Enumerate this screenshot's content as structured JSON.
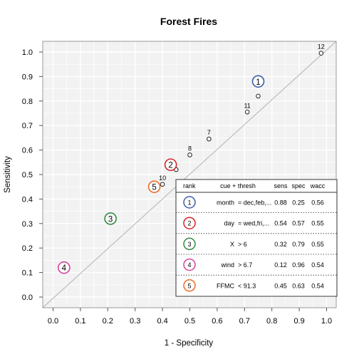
{
  "chart_data": {
    "type": "scatter",
    "title": "Forest Fires",
    "xlabel": "1 - Specificity",
    "ylabel": "Sensitivity",
    "xlim": [
      0,
      1
    ],
    "ylim": [
      0,
      1
    ],
    "grid": true,
    "x_ticks": [
      "0.0",
      "0.1",
      "0.2",
      "0.3",
      "0.4",
      "0.5",
      "0.6",
      "0.7",
      "0.8",
      "0.9",
      "1.0"
    ],
    "y_ticks": [
      "0.0",
      "0.1",
      "0.2",
      "0.3",
      "0.4",
      "0.5",
      "0.6",
      "0.7",
      "0.8",
      "0.9",
      "1.0"
    ],
    "diagonal": true,
    "points": [
      {
        "label": "",
        "x": 0.75,
        "y": 0.82
      },
      {
        "label": "",
        "x": 0.45,
        "y": 0.52
      },
      {
        "label": "8",
        "x": 0.5,
        "y": 0.58
      },
      {
        "label": "7",
        "x": 0.57,
        "y": 0.645
      },
      {
        "label": "10",
        "x": 0.4,
        "y": 0.46
      },
      {
        "label": "11",
        "x": 0.71,
        "y": 0.755
      },
      {
        "label": "12",
        "x": 0.98,
        "y": 0.995
      }
    ],
    "ranked": [
      {
        "rank": "1",
        "x": 0.75,
        "y": 0.88,
        "color": "#3a5fa8"
      },
      {
        "rank": "2",
        "x": 0.43,
        "y": 0.54,
        "color": "#d2232a"
      },
      {
        "rank": "3",
        "x": 0.21,
        "y": 0.32,
        "color": "#2e8b3e"
      },
      {
        "rank": "4",
        "x": 0.04,
        "y": 0.12,
        "color": "#d7449a"
      },
      {
        "rank": "5",
        "x": 0.37,
        "y": 0.45,
        "color": "#ee6a25"
      }
    ],
    "legend": {
      "position": "bottom-right",
      "headers": [
        "rank",
        "cue + thresh",
        "sens",
        "spec",
        "wacc"
      ],
      "rows": [
        {
          "rank": "1",
          "cue": "month",
          "thresh": "= dec,feb,...",
          "sens": "0.88",
          "spec": "0.25",
          "wacc": "0.56",
          "color": "#3a5fa8"
        },
        {
          "rank": "2",
          "cue": "day",
          "thresh": "= wed,fri,...",
          "sens": "0.54",
          "spec": "0.57",
          "wacc": "0.55",
          "color": "#d2232a"
        },
        {
          "rank": "3",
          "cue": "X",
          "thresh": "> 6",
          "sens": "0.32",
          "spec": "0.79",
          "wacc": "0.55",
          "color": "#2e8b3e"
        },
        {
          "rank": "4",
          "cue": "wind",
          "thresh": "> 6.7",
          "sens": "0.12",
          "spec": "0.96",
          "wacc": "0.54",
          "color": "#d7449a"
        },
        {
          "rank": "5",
          "cue": "FFMC",
          "thresh": "< 91.3",
          "sens": "0.45",
          "spec": "0.63",
          "wacc": "0.54",
          "color": "#ee6a25"
        }
      ]
    }
  }
}
